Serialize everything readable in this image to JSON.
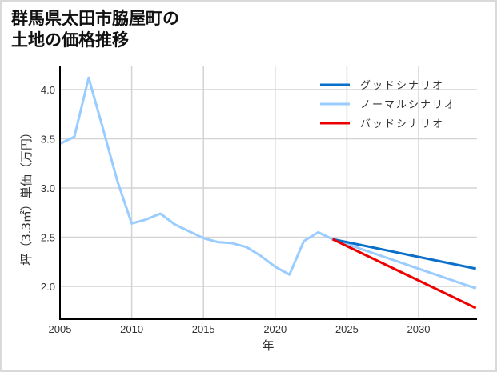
{
  "title": {
    "line1": "群馬県太田市脇屋町の",
    "line2": "土地の価格推移"
  },
  "chart_data": {
    "type": "line",
    "title": "群馬県太田市脇屋町の土地の価格推移",
    "xlabel": "年",
    "ylabel": "坪（3.3㎡）単価（万円）",
    "xlim": [
      2005,
      2034
    ],
    "ylim": [
      1.67,
      4.25
    ],
    "xticks": [
      2005,
      2010,
      2015,
      2020,
      2025,
      2030
    ],
    "yticks": [
      2.0,
      2.5,
      3.0,
      3.5,
      4.0
    ],
    "xtick_labels": [
      "2005",
      "2010",
      "2015",
      "2020",
      "2025",
      "2030"
    ],
    "ytick_labels": [
      "2.0",
      "2.5",
      "3.0",
      "3.5",
      "4.0"
    ],
    "grid": true,
    "legend_position": "upper right",
    "series": [
      {
        "name": "グッドシナリオ",
        "color": "#0a6fc9",
        "x": [
          2024,
          2034
        ],
        "values": [
          2.48,
          2.18
        ]
      },
      {
        "name": "ノーマルシナリオ",
        "color": "#99ccff",
        "x": [
          2005,
          2006,
          2007,
          2008,
          2009,
          2010,
          2011,
          2012,
          2013,
          2014,
          2015,
          2016,
          2017,
          2018,
          2019,
          2020,
          2021,
          2022,
          2023,
          2024,
          2034
        ],
        "values": [
          3.45,
          3.52,
          4.12,
          3.6,
          3.07,
          2.64,
          2.68,
          2.74,
          2.63,
          2.56,
          2.49,
          2.45,
          2.44,
          2.4,
          2.31,
          2.2,
          2.12,
          2.46,
          2.55,
          2.48,
          1.98
        ]
      },
      {
        "name": "バッドシナリオ",
        "color": "#ee0000",
        "x": [
          2024,
          2034
        ],
        "values": [
          2.48,
          1.78
        ]
      }
    ]
  },
  "legend": [
    {
      "label": "グッドシナリオ",
      "color": "#0a6fc9"
    },
    {
      "label": "ノーマルシナリオ",
      "color": "#99ccff"
    },
    {
      "label": "バッドシナリオ",
      "color": "#ee0000"
    }
  ],
  "axes": {
    "xlabel": "年",
    "ylabel": "坪（3.3㎡）単価（万円）"
  }
}
